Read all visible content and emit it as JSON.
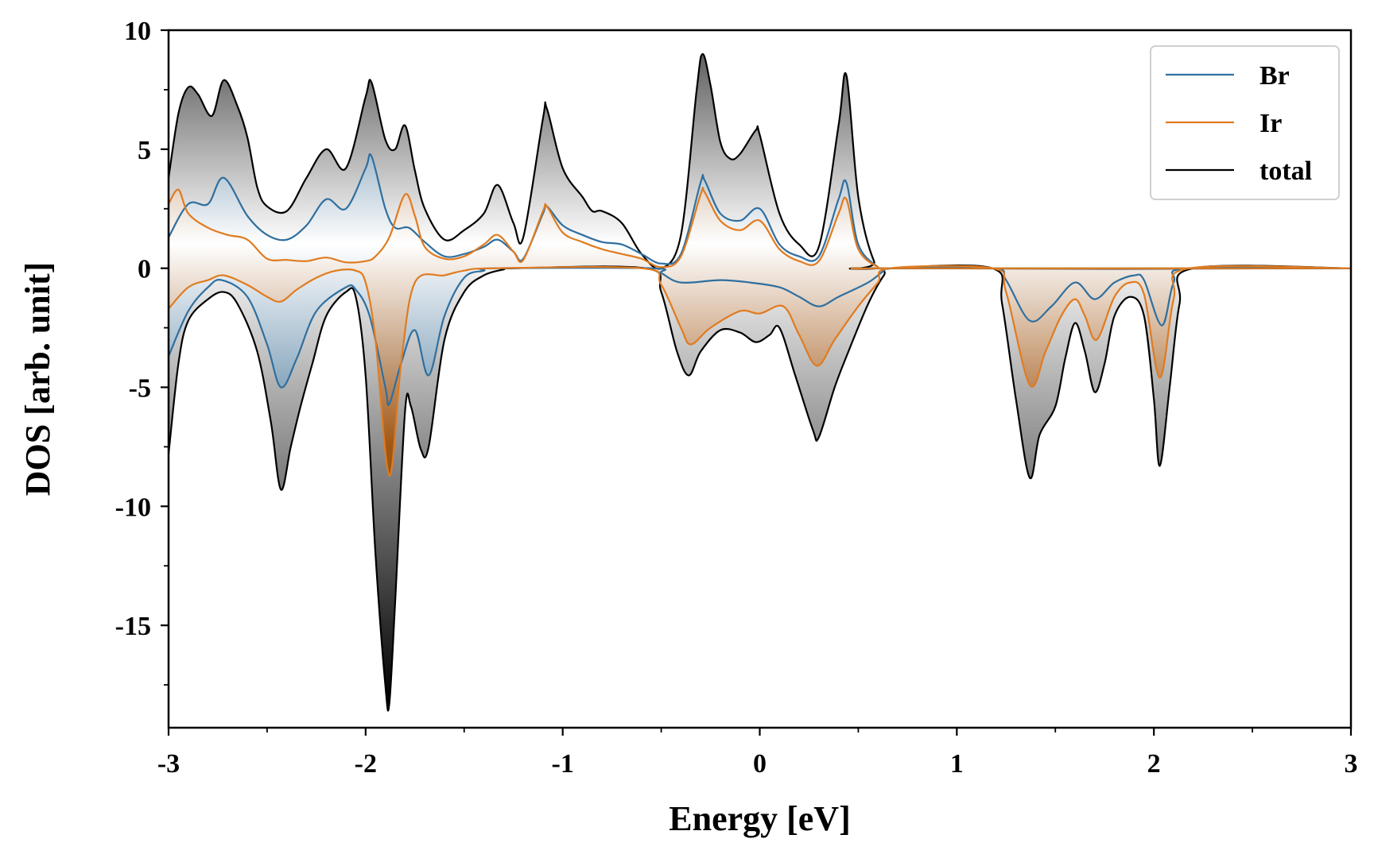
{
  "chart_data": {
    "type": "area",
    "xlabel": "Energy [eV]",
    "ylabel": "DOS [arb. unit]",
    "xlim": [
      -3,
      3
    ],
    "ylim": [
      -19.3,
      10
    ],
    "xticks": [
      -3,
      -2,
      -1,
      0,
      1,
      2,
      3
    ],
    "xtick_labels": [
      "-3",
      "-2",
      "-1",
      "0",
      "1",
      "2",
      "3"
    ],
    "yticks": [
      -15,
      -10,
      -5,
      0,
      5,
      10
    ],
    "ytick_labels": [
      "-15",
      "-10",
      "-5",
      "0",
      "5",
      "10"
    ],
    "legend_position": "top-right",
    "grid": false,
    "series": [
      {
        "name": "Br",
        "color": "#2f6f9f",
        "up": [
          [
            -3.0,
            1.3
          ],
          [
            -2.9,
            2.7
          ],
          [
            -2.8,
            2.7
          ],
          [
            -2.72,
            3.8
          ],
          [
            -2.6,
            2.2
          ],
          [
            -2.5,
            1.4
          ],
          [
            -2.4,
            1.2
          ],
          [
            -2.3,
            1.8
          ],
          [
            -2.2,
            2.9
          ],
          [
            -2.1,
            2.5
          ],
          [
            -2.0,
            4.2
          ],
          [
            -1.97,
            4.7
          ],
          [
            -1.9,
            2.5
          ],
          [
            -1.85,
            1.7
          ],
          [
            -1.78,
            1.7
          ],
          [
            -1.7,
            1.1
          ],
          [
            -1.6,
            0.5
          ],
          [
            -1.5,
            0.6
          ],
          [
            -1.4,
            0.9
          ],
          [
            -1.33,
            1.2
          ],
          [
            -1.25,
            0.7
          ],
          [
            -1.2,
            0.4
          ],
          [
            -1.1,
            2.3
          ],
          [
            -1.08,
            2.6
          ],
          [
            -1.0,
            1.8
          ],
          [
            -0.9,
            1.4
          ],
          [
            -0.8,
            1.1
          ],
          [
            -0.7,
            1.0
          ],
          [
            -0.6,
            0.6
          ],
          [
            -0.5,
            0.2
          ],
          [
            -0.4,
            0.6
          ],
          [
            -0.3,
            3.6
          ],
          [
            -0.28,
            3.7
          ],
          [
            -0.2,
            2.3
          ],
          [
            -0.1,
            2.0
          ],
          [
            0.0,
            2.5
          ],
          [
            0.1,
            1.0
          ],
          [
            0.2,
            0.5
          ],
          [
            0.3,
            0.5
          ],
          [
            0.4,
            2.9
          ],
          [
            0.44,
            3.6
          ],
          [
            0.5,
            1.0
          ],
          [
            0.6,
            0.05
          ],
          [
            0.65,
            0.0
          ],
          [
            3.0,
            0.0
          ]
        ],
        "down": [
          [
            -3.0,
            -3.7
          ],
          [
            -2.9,
            -1.8
          ],
          [
            -2.8,
            -0.8
          ],
          [
            -2.73,
            -0.5
          ],
          [
            -2.6,
            -1.2
          ],
          [
            -2.5,
            -3.2
          ],
          [
            -2.43,
            -5.0
          ],
          [
            -2.35,
            -3.8
          ],
          [
            -2.25,
            -1.8
          ],
          [
            -2.1,
            -0.8
          ],
          [
            -2.05,
            -0.9
          ],
          [
            -1.98,
            -2.0
          ],
          [
            -1.9,
            -5.0
          ],
          [
            -1.88,
            -5.7
          ],
          [
            -1.82,
            -4.0
          ],
          [
            -1.75,
            -2.6
          ],
          [
            -1.68,
            -4.5
          ],
          [
            -1.6,
            -2.0
          ],
          [
            -1.5,
            -0.4
          ],
          [
            -1.4,
            -0.1
          ],
          [
            -1.35,
            0.0
          ],
          [
            -0.55,
            0.0
          ],
          [
            -0.5,
            -0.2
          ],
          [
            -0.4,
            -0.6
          ],
          [
            -0.2,
            -0.5
          ],
          [
            -0.05,
            -0.6
          ],
          [
            0.1,
            -0.8
          ],
          [
            0.2,
            -1.2
          ],
          [
            0.3,
            -1.6
          ],
          [
            0.4,
            -1.2
          ],
          [
            0.55,
            -0.6
          ],
          [
            0.63,
            -0.1
          ],
          [
            0.66,
            0.0
          ],
          [
            1.18,
            0.0
          ],
          [
            1.25,
            -0.5
          ],
          [
            1.37,
            -2.2
          ],
          [
            1.48,
            -1.6
          ],
          [
            1.6,
            -0.6
          ],
          [
            1.7,
            -1.3
          ],
          [
            1.8,
            -0.6
          ],
          [
            1.9,
            -0.3
          ],
          [
            1.95,
            -0.5
          ],
          [
            2.04,
            -2.4
          ],
          [
            2.1,
            -0.6
          ],
          [
            2.18,
            0.0
          ],
          [
            3.0,
            0.0
          ]
        ]
      },
      {
        "name": "Ir",
        "color": "#e07b20",
        "up": [
          [
            -3.0,
            2.7
          ],
          [
            -2.95,
            3.3
          ],
          [
            -2.9,
            2.3
          ],
          [
            -2.8,
            1.7
          ],
          [
            -2.7,
            1.4
          ],
          [
            -2.6,
            1.2
          ],
          [
            -2.5,
            0.4
          ],
          [
            -2.4,
            0.35
          ],
          [
            -2.3,
            0.3
          ],
          [
            -2.2,
            0.45
          ],
          [
            -2.1,
            0.25
          ],
          [
            -2.0,
            0.3
          ],
          [
            -1.95,
            0.5
          ],
          [
            -1.88,
            1.3
          ],
          [
            -1.8,
            3.1
          ],
          [
            -1.75,
            2.2
          ],
          [
            -1.7,
            0.9
          ],
          [
            -1.6,
            0.4
          ],
          [
            -1.5,
            0.5
          ],
          [
            -1.4,
            1.0
          ],
          [
            -1.33,
            1.4
          ],
          [
            -1.25,
            0.7
          ],
          [
            -1.2,
            0.35
          ],
          [
            -1.1,
            2.4
          ],
          [
            -1.08,
            2.6
          ],
          [
            -1.0,
            1.5
          ],
          [
            -0.9,
            1.1
          ],
          [
            -0.8,
            0.8
          ],
          [
            -0.7,
            0.6
          ],
          [
            -0.6,
            0.4
          ],
          [
            -0.5,
            0.05
          ],
          [
            -0.4,
            0.5
          ],
          [
            -0.3,
            3.1
          ],
          [
            -0.28,
            3.2
          ],
          [
            -0.2,
            2.0
          ],
          [
            -0.1,
            1.6
          ],
          [
            0.0,
            2.0
          ],
          [
            0.1,
            0.8
          ],
          [
            0.2,
            0.3
          ],
          [
            0.3,
            0.3
          ],
          [
            0.4,
            2.3
          ],
          [
            0.44,
            2.9
          ],
          [
            0.5,
            0.8
          ],
          [
            0.6,
            0.05
          ],
          [
            0.65,
            0.0
          ],
          [
            3.0,
            0.0
          ]
        ],
        "down": [
          [
            -3.0,
            -1.7
          ],
          [
            -2.9,
            -0.8
          ],
          [
            -2.8,
            -0.5
          ],
          [
            -2.72,
            -0.3
          ],
          [
            -2.6,
            -0.7
          ],
          [
            -2.5,
            -1.2
          ],
          [
            -2.43,
            -1.4
          ],
          [
            -2.35,
            -0.9
          ],
          [
            -2.25,
            -0.4
          ],
          [
            -2.15,
            -0.1
          ],
          [
            -2.05,
            -0.1
          ],
          [
            -2.0,
            -0.6
          ],
          [
            -1.95,
            -3.0
          ],
          [
            -1.88,
            -8.7
          ],
          [
            -1.82,
            -4.0
          ],
          [
            -1.75,
            -0.6
          ],
          [
            -1.6,
            -0.3
          ],
          [
            -1.5,
            -0.1
          ],
          [
            -1.35,
            0.0
          ],
          [
            -0.6,
            0.0
          ],
          [
            -0.5,
            -0.7
          ],
          [
            -0.4,
            -2.5
          ],
          [
            -0.35,
            -3.2
          ],
          [
            -0.25,
            -2.5
          ],
          [
            -0.1,
            -1.8
          ],
          [
            0.0,
            -1.9
          ],
          [
            0.12,
            -1.6
          ],
          [
            0.2,
            -2.8
          ],
          [
            0.29,
            -4.1
          ],
          [
            0.38,
            -3.0
          ],
          [
            0.5,
            -1.6
          ],
          [
            0.6,
            -0.6
          ],
          [
            0.66,
            0.0
          ],
          [
            1.18,
            0.0
          ],
          [
            1.25,
            -1.0
          ],
          [
            1.37,
            -4.9
          ],
          [
            1.45,
            -3.5
          ],
          [
            1.53,
            -2.0
          ],
          [
            1.6,
            -1.3
          ],
          [
            1.65,
            -2.0
          ],
          [
            1.71,
            -3.0
          ],
          [
            1.8,
            -1.2
          ],
          [
            1.88,
            -0.6
          ],
          [
            1.95,
            -1.1
          ],
          [
            2.03,
            -4.6
          ],
          [
            2.1,
            -1.3
          ],
          [
            2.18,
            0.0
          ],
          [
            3.0,
            0.0
          ]
        ]
      },
      {
        "name": "total",
        "color": "#000000",
        "up": [
          [
            -3.0,
            3.8
          ],
          [
            -2.95,
            6.5
          ],
          [
            -2.9,
            7.6
          ],
          [
            -2.85,
            7.3
          ],
          [
            -2.78,
            6.4
          ],
          [
            -2.72,
            7.9
          ],
          [
            -2.65,
            6.8
          ],
          [
            -2.6,
            5.5
          ],
          [
            -2.55,
            3.4
          ],
          [
            -2.5,
            2.6
          ],
          [
            -2.4,
            2.4
          ],
          [
            -2.3,
            3.8
          ],
          [
            -2.2,
            5.0
          ],
          [
            -2.1,
            4.2
          ],
          [
            -2.0,
            7.2
          ],
          [
            -1.97,
            7.8
          ],
          [
            -1.9,
            5.4
          ],
          [
            -1.85,
            5.0
          ],
          [
            -1.8,
            6.0
          ],
          [
            -1.75,
            4.1
          ],
          [
            -1.7,
            2.5
          ],
          [
            -1.6,
            1.2
          ],
          [
            -1.5,
            1.6
          ],
          [
            -1.4,
            2.3
          ],
          [
            -1.33,
            3.5
          ],
          [
            -1.25,
            1.9
          ],
          [
            -1.2,
            1.3
          ],
          [
            -1.1,
            6.3
          ],
          [
            -1.08,
            6.7
          ],
          [
            -1.0,
            4.2
          ],
          [
            -0.9,
            3.0
          ],
          [
            -0.85,
            2.4
          ],
          [
            -0.8,
            2.4
          ],
          [
            -0.7,
            1.9
          ],
          [
            -0.6,
            0.6
          ],
          [
            -0.5,
            0.0
          ],
          [
            -0.4,
            1.4
          ],
          [
            -0.32,
            7.5
          ],
          [
            -0.29,
            9.0
          ],
          [
            -0.25,
            7.7
          ],
          [
            -0.2,
            5.3
          ],
          [
            -0.15,
            4.6
          ],
          [
            -0.1,
            4.8
          ],
          [
            -0.02,
            5.8
          ],
          [
            0.0,
            5.6
          ],
          [
            0.1,
            2.3
          ],
          [
            0.2,
            1.0
          ],
          [
            0.3,
            0.9
          ],
          [
            0.4,
            6.0
          ],
          [
            0.44,
            8.1
          ],
          [
            0.5,
            3.0
          ],
          [
            0.58,
            0.3
          ],
          [
            0.65,
            0.0
          ],
          [
            3.0,
            0.0
          ]
        ],
        "down": [
          [
            -3.0,
            -7.8
          ],
          [
            -2.95,
            -4.0
          ],
          [
            -2.9,
            -2.2
          ],
          [
            -2.8,
            -1.3
          ],
          [
            -2.72,
            -1.0
          ],
          [
            -2.65,
            -1.5
          ],
          [
            -2.55,
            -3.5
          ],
          [
            -2.48,
            -6.5
          ],
          [
            -2.43,
            -9.3
          ],
          [
            -2.38,
            -7.5
          ],
          [
            -2.33,
            -5.8
          ],
          [
            -2.27,
            -4.0
          ],
          [
            -2.2,
            -2.0
          ],
          [
            -2.1,
            -1.0
          ],
          [
            -2.05,
            -1.2
          ],
          [
            -2.0,
            -4.5
          ],
          [
            -1.95,
            -12.0
          ],
          [
            -1.9,
            -17.5
          ],
          [
            -1.88,
            -18.3
          ],
          [
            -1.85,
            -14.0
          ],
          [
            -1.8,
            -6.0
          ],
          [
            -1.77,
            -5.8
          ],
          [
            -1.72,
            -7.6
          ],
          [
            -1.68,
            -7.5
          ],
          [
            -1.6,
            -3.0
          ],
          [
            -1.5,
            -1.0
          ],
          [
            -1.4,
            -0.3
          ],
          [
            -1.3,
            -0.05
          ],
          [
            -1.25,
            0.0
          ],
          [
            -0.58,
            0.0
          ],
          [
            -0.5,
            -1.0
          ],
          [
            -0.42,
            -3.5
          ],
          [
            -0.36,
            -4.5
          ],
          [
            -0.3,
            -3.5
          ],
          [
            -0.2,
            -2.6
          ],
          [
            -0.1,
            -2.7
          ],
          [
            -0.02,
            -3.1
          ],
          [
            0.05,
            -2.8
          ],
          [
            0.1,
            -2.5
          ],
          [
            0.18,
            -4.5
          ],
          [
            0.27,
            -6.8
          ],
          [
            0.3,
            -7.1
          ],
          [
            0.38,
            -5.0
          ],
          [
            0.45,
            -3.5
          ],
          [
            0.55,
            -1.5
          ],
          [
            0.63,
            -0.3
          ],
          [
            0.68,
            0.0
          ],
          [
            1.18,
            0.0
          ],
          [
            1.23,
            -1.5
          ],
          [
            1.3,
            -5.5
          ],
          [
            1.37,
            -8.8
          ],
          [
            1.42,
            -7.0
          ],
          [
            1.5,
            -5.8
          ],
          [
            1.55,
            -3.8
          ],
          [
            1.6,
            -2.3
          ],
          [
            1.65,
            -3.5
          ],
          [
            1.7,
            -5.2
          ],
          [
            1.75,
            -4.0
          ],
          [
            1.8,
            -2.0
          ],
          [
            1.88,
            -1.2
          ],
          [
            1.95,
            -2.0
          ],
          [
            2.0,
            -5.5
          ],
          [
            2.03,
            -8.3
          ],
          [
            2.08,
            -5.0
          ],
          [
            2.13,
            -1.5
          ],
          [
            2.2,
            0.0
          ],
          [
            3.0,
            0.0
          ]
        ]
      }
    ]
  }
}
